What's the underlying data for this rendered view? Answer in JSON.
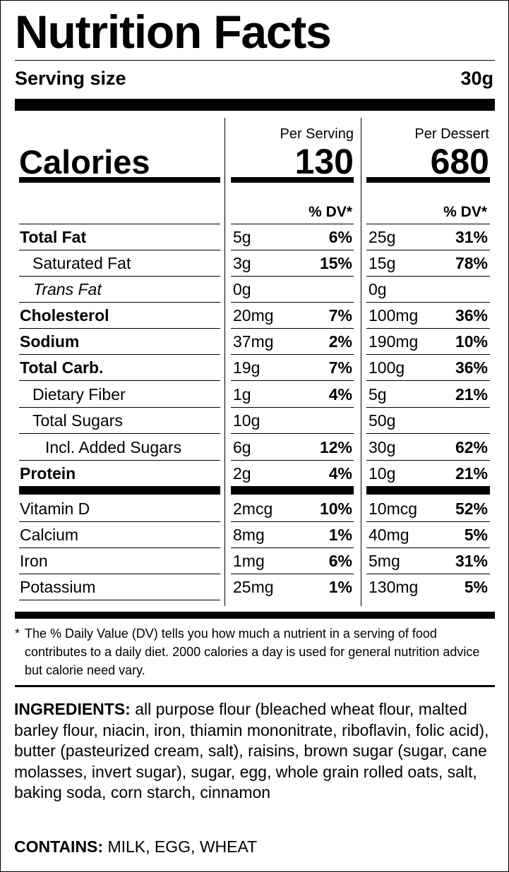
{
  "label": {
    "title": "Nutrition Facts",
    "serving_size_label": "Serving size",
    "serving_size_value": "30g",
    "calories_label": "Calories",
    "col1_header": "Per Serving",
    "col2_header": "Per Dessert",
    "calories_per_serving": "130",
    "calories_per_dessert": "680",
    "dv_header": "% DV*"
  },
  "nutrients": [
    {
      "name": "Total Fat",
      "s_amt": "5g",
      "s_dv": "6%",
      "d_amt": "25g",
      "d_dv": "31%"
    },
    {
      "name": "Saturated Fat",
      "s_amt": "3g",
      "s_dv": "15%",
      "d_amt": "15g",
      "d_dv": "78%"
    },
    {
      "name": "Trans Fat",
      "s_amt": "0g",
      "s_dv": "",
      "d_amt": "0g",
      "d_dv": ""
    },
    {
      "name": "Cholesterol",
      "s_amt": "20mg",
      "s_dv": "7%",
      "d_amt": "100mg",
      "d_dv": "36%"
    },
    {
      "name": "Sodium",
      "s_amt": "37mg",
      "s_dv": "2%",
      "d_amt": "190mg",
      "d_dv": "10%"
    },
    {
      "name": "Total Carb.",
      "s_amt": "19g",
      "s_dv": "7%",
      "d_amt": "100g",
      "d_dv": "36%"
    },
    {
      "name": "Dietary Fiber",
      "s_amt": "1g",
      "s_dv": "4%",
      "d_amt": "5g",
      "d_dv": "21%"
    },
    {
      "name": "Total Sugars",
      "s_amt": "10g",
      "s_dv": "",
      "d_amt": "50g",
      "d_dv": ""
    },
    {
      "name": "Incl. Added Sugars",
      "s_amt": "6g",
      "s_dv": "12%",
      "d_amt": "30g",
      "d_dv": "62%"
    },
    {
      "name": "Protein",
      "s_amt": "2g",
      "s_dv": "4%",
      "d_amt": "10g",
      "d_dv": "21%"
    }
  ],
  "vitamins": [
    {
      "name": "Vitamin D",
      "s_amt": "2mcg",
      "s_dv": "10%",
      "d_amt": "10mcg",
      "d_dv": "52%"
    },
    {
      "name": "Calcium",
      "s_amt": "8mg",
      "s_dv": "1%",
      "d_amt": "40mg",
      "d_dv": "5%"
    },
    {
      "name": "Iron",
      "s_amt": "1mg",
      "s_dv": "6%",
      "d_amt": "5mg",
      "d_dv": "31%"
    },
    {
      "name": "Potassium",
      "s_amt": "25mg",
      "s_dv": "1%",
      "d_amt": "130mg",
      "d_dv": "5%"
    }
  ],
  "footnote": {
    "star": "*",
    "text": "The % Daily Value (DV) tells you how much a nutrient in a serving of food contributes to a daily diet. 2000 calories a day is used for general nutrition advice but calorie need vary."
  },
  "ingredients": {
    "label": "INGREDIENTS:",
    "text": "all purpose flour (bleached wheat flour, malted barley flour, niacin, iron, thiamin mononitrate, riboflavin, folic acid), butter (pasteurized cream, salt), raisins, brown sugar (sugar, cane molasses, invert sugar), sugar, egg, whole grain rolled oats, salt, baking soda, corn starch, cinnamon"
  },
  "contains": {
    "label": "CONTAINS:",
    "text": "MILK, EGG, WHEAT"
  }
}
